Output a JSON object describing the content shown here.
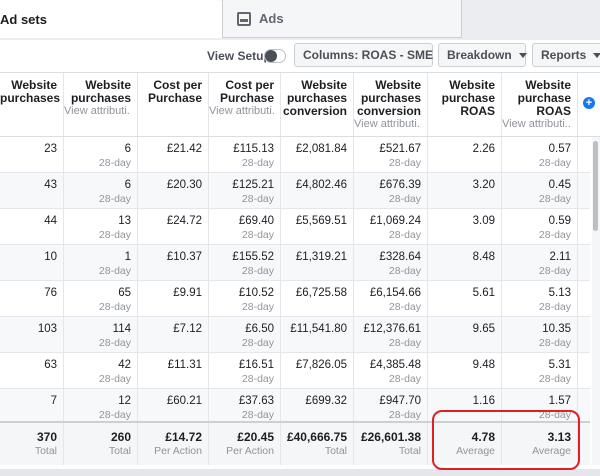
{
  "tabs": [
    {
      "label": "Ad sets"
    },
    {
      "label": "Ads"
    }
  ],
  "toolbar": {
    "view_setup_label": "View Setup",
    "columns_label": "Columns: ROAS - SME",
    "breakdown_label": "Breakdown",
    "reports_label": "Reports"
  },
  "columns": [
    {
      "title": "Website purchases",
      "sub": ""
    },
    {
      "title": "Website purchases",
      "sub": "View attributi..."
    },
    {
      "title": "Cost per Purchase",
      "sub": ""
    },
    {
      "title": "Cost per Purchase",
      "sub": "View attributi..."
    },
    {
      "title": "Website purchases conversion",
      "sub": ""
    },
    {
      "title": "Website purchases conversion",
      "sub": "View attributi..."
    },
    {
      "title": "Website purchase ROAS",
      "sub": ""
    },
    {
      "title": "Website purchase ROAS",
      "sub": "View attributi..."
    }
  ],
  "rows": [
    {
      "cells": [
        {
          "v": "23",
          "s": ""
        },
        {
          "v": "6",
          "s": "28-day"
        },
        {
          "v": "£21.42",
          "s": ""
        },
        {
          "v": "£115.13",
          "s": "28-day"
        },
        {
          "v": "£2,081.84",
          "s": ""
        },
        {
          "v": "£521.67",
          "s": "28-day"
        },
        {
          "v": "2.26",
          "s": ""
        },
        {
          "v": "0.57",
          "s": "28-day"
        }
      ]
    },
    {
      "cells": [
        {
          "v": "43",
          "s": ""
        },
        {
          "v": "6",
          "s": "28-day"
        },
        {
          "v": "£20.30",
          "s": ""
        },
        {
          "v": "£125.21",
          "s": "28-day"
        },
        {
          "v": "£4,802.46",
          "s": ""
        },
        {
          "v": "£676.39",
          "s": "28-day"
        },
        {
          "v": "3.20",
          "s": ""
        },
        {
          "v": "0.45",
          "s": "28-day"
        }
      ]
    },
    {
      "cells": [
        {
          "v": "44",
          "s": ""
        },
        {
          "v": "13",
          "s": "28-day"
        },
        {
          "v": "£24.72",
          "s": ""
        },
        {
          "v": "£69.40",
          "s": "28-day"
        },
        {
          "v": "£5,569.51",
          "s": ""
        },
        {
          "v": "£1,069.24",
          "s": "28-day"
        },
        {
          "v": "3.09",
          "s": ""
        },
        {
          "v": "0.59",
          "s": "28-day"
        }
      ]
    },
    {
      "cells": [
        {
          "v": "10",
          "s": ""
        },
        {
          "v": "1",
          "s": "28-day"
        },
        {
          "v": "£10.37",
          "s": ""
        },
        {
          "v": "£155.52",
          "s": "28-day"
        },
        {
          "v": "£1,319.21",
          "s": ""
        },
        {
          "v": "£328.64",
          "s": "28-day"
        },
        {
          "v": "8.48",
          "s": ""
        },
        {
          "v": "2.11",
          "s": "28-day"
        }
      ]
    },
    {
      "cells": [
        {
          "v": "76",
          "s": ""
        },
        {
          "v": "65",
          "s": "28-day"
        },
        {
          "v": "£9.91",
          "s": ""
        },
        {
          "v": "£10.52",
          "s": "28-day"
        },
        {
          "v": "£6,725.58",
          "s": ""
        },
        {
          "v": "£6,154.66",
          "s": "28-day"
        },
        {
          "v": "5.61",
          "s": ""
        },
        {
          "v": "5.13",
          "s": "28-day"
        }
      ]
    },
    {
      "cells": [
        {
          "v": "103",
          "s": ""
        },
        {
          "v": "114",
          "s": "28-day"
        },
        {
          "v": "£7.12",
          "s": ""
        },
        {
          "v": "£6.50",
          "s": "28-day"
        },
        {
          "v": "£11,541.80",
          "s": ""
        },
        {
          "v": "£12,376.61",
          "s": "28-day"
        },
        {
          "v": "9.65",
          "s": ""
        },
        {
          "v": "10.35",
          "s": "28-day"
        }
      ]
    },
    {
      "cells": [
        {
          "v": "63",
          "s": ""
        },
        {
          "v": "42",
          "s": "28-day"
        },
        {
          "v": "£11.31",
          "s": ""
        },
        {
          "v": "£16.51",
          "s": "28-day"
        },
        {
          "v": "£7,826.05",
          "s": ""
        },
        {
          "v": "£4,385.48",
          "s": "28-day"
        },
        {
          "v": "9.48",
          "s": ""
        },
        {
          "v": "5.31",
          "s": "28-day"
        }
      ]
    },
    {
      "cells": [
        {
          "v": "7",
          "s": ""
        },
        {
          "v": "12",
          "s": "28-day"
        },
        {
          "v": "£60.21",
          "s": ""
        },
        {
          "v": "£37.63",
          "s": "28-day"
        },
        {
          "v": "£699.32",
          "s": ""
        },
        {
          "v": "£947.70",
          "s": "28-day"
        },
        {
          "v": "1.16",
          "s": ""
        },
        {
          "v": "1.57",
          "s": "28-day"
        }
      ]
    }
  ],
  "totals": [
    {
      "v": "370",
      "s": "Total"
    },
    {
      "v": "260",
      "s": "Total"
    },
    {
      "v": "£14.72",
      "s": "Per Action"
    },
    {
      "v": "£20.45",
      "s": "Per Action"
    },
    {
      "v": "£40,666.75",
      "s": "Total"
    },
    {
      "v": "£26,601.38",
      "s": "Total"
    },
    {
      "v": "4.78",
      "s": "Average"
    },
    {
      "v": "3.13",
      "s": "Average"
    }
  ],
  "add_column_icon": "plus-icon",
  "colors": {
    "accent": "#1877f2",
    "highlight": "#e02020"
  }
}
